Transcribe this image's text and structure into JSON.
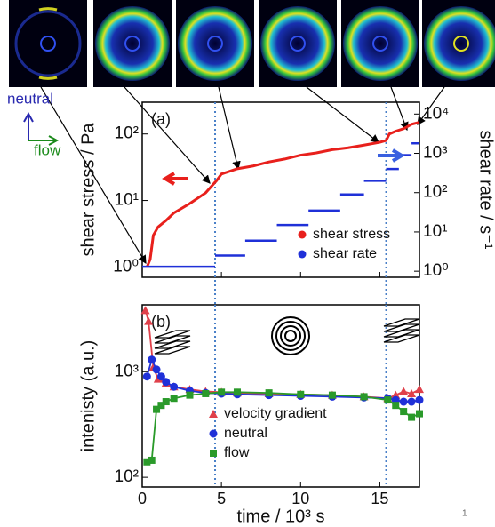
{
  "inset": {
    "neutral": "neutral",
    "flow": "flow"
  },
  "page_number": "1",
  "chart_data": [
    {
      "type": "line",
      "panel_label": "(a)",
      "y_label": "shear stress / Pa",
      "y2_label": "shear rate / s⁻¹",
      "xlim": [
        0,
        17.5
      ],
      "xticks": [
        0,
        5,
        10,
        15
      ],
      "show_xtick_labels": false,
      "log_y": true,
      "ylim": [
        0.7,
        300
      ],
      "yticks": [
        {
          "value": 1,
          "label": "10⁰"
        },
        {
          "value": 10,
          "label": "10¹"
        },
        {
          "value": 100,
          "label": "10²"
        }
      ],
      "y2lim": [
        0.7,
        20000
      ],
      "y2ticks": [
        {
          "value": 1,
          "label": "10⁰"
        },
        {
          "value": 10,
          "label": "10¹"
        },
        {
          "value": 100,
          "label": "10²"
        },
        {
          "value": 1000,
          "label": "10³"
        },
        {
          "value": 10000,
          "label": "10⁴"
        }
      ],
      "vlines": [
        4.6,
        15.4
      ],
      "legend": "lower right",
      "series": [
        {
          "name": "shear stress",
          "color": "#e8201c",
          "style": "line",
          "x": [
            0.3,
            0.5,
            0.7,
            1,
            1.5,
            2,
            3,
            4,
            4.7,
            5,
            6,
            7,
            8,
            9,
            10,
            11,
            12,
            13,
            14,
            15,
            15.4,
            15.6,
            16,
            16.5,
            17,
            17.5
          ],
          "values": [
            1,
            1.3,
            3,
            4,
            5,
            6.5,
            9,
            13,
            20,
            25,
            30,
            33,
            38,
            42,
            48,
            52,
            58,
            62,
            68,
            75,
            80,
            100,
            110,
            120,
            140,
            150
          ]
        },
        {
          "name": "shear rate",
          "color": "#1f30d8",
          "style": "steps",
          "axis": "y2",
          "x": [
            0,
            4.6,
            6.5,
            8.5,
            10.5,
            12.5,
            14,
            15.4,
            16.2,
            17
          ],
          "x_end": [
            4.6,
            6.5,
            8.5,
            10.5,
            12.5,
            14,
            15.4,
            16.2,
            17,
            17.5
          ],
          "values": [
            1.3,
            2.5,
            6,
            15,
            35,
            90,
            200,
            400,
            900,
            1800
          ]
        }
      ]
    },
    {
      "type": "line",
      "panel_label": "(b)",
      "x_label": "time / 10³ s",
      "y_label": "intenisty (a.u.)",
      "xlim": [
        0,
        17.5
      ],
      "xticks": [
        0,
        5,
        10,
        15
      ],
      "show_xtick_labels": true,
      "log_y": true,
      "ylim": [
        81,
        4300
      ],
      "yticks": [
        {
          "value": 100,
          "label": "10²"
        },
        {
          "value": 1000,
          "label": "10³"
        }
      ],
      "vlines": [
        4.6,
        15.4
      ],
      "legend": "lower center",
      "series": [
        {
          "name": "velocity gradient",
          "color": "#e0404a",
          "marker": "triangle",
          "x": [
            0.2,
            0.4,
            0.7,
            1,
            1.5,
            2,
            3,
            4,
            5,
            6,
            8,
            10,
            12,
            14,
            15.5,
            16,
            16.5,
            17,
            17.5
          ],
          "values": [
            3800,
            3000,
            1100,
            850,
            780,
            720,
            680,
            650,
            640,
            630,
            620,
            610,
            600,
            580,
            560,
            600,
            650,
            620,
            680
          ]
        },
        {
          "name": "neutral",
          "color": "#1f30d8",
          "marker": "circle",
          "x": [
            0.3,
            0.6,
            0.9,
            1.2,
            1.5,
            2,
            3,
            4,
            5,
            6,
            8,
            10,
            12,
            14,
            15.5,
            16,
            16.5,
            17,
            17.5
          ],
          "values": [
            900,
            1300,
            1050,
            900,
            800,
            720,
            660,
            630,
            620,
            610,
            600,
            590,
            580,
            570,
            560,
            540,
            520,
            520,
            540
          ]
        },
        {
          "name": "flow",
          "color": "#2a9a2a",
          "marker": "square",
          "x": [
            0.3,
            0.6,
            0.9,
            1.2,
            1.5,
            2,
            3,
            4,
            5,
            6,
            8,
            10,
            12,
            14,
            15.5,
            16,
            16.5,
            17,
            17.5
          ],
          "values": [
            140,
            145,
            440,
            480,
            520,
            560,
            600,
            620,
            640,
            640,
            630,
            610,
            600,
            580,
            540,
            480,
            420,
            370,
            400
          ]
        }
      ]
    }
  ]
}
